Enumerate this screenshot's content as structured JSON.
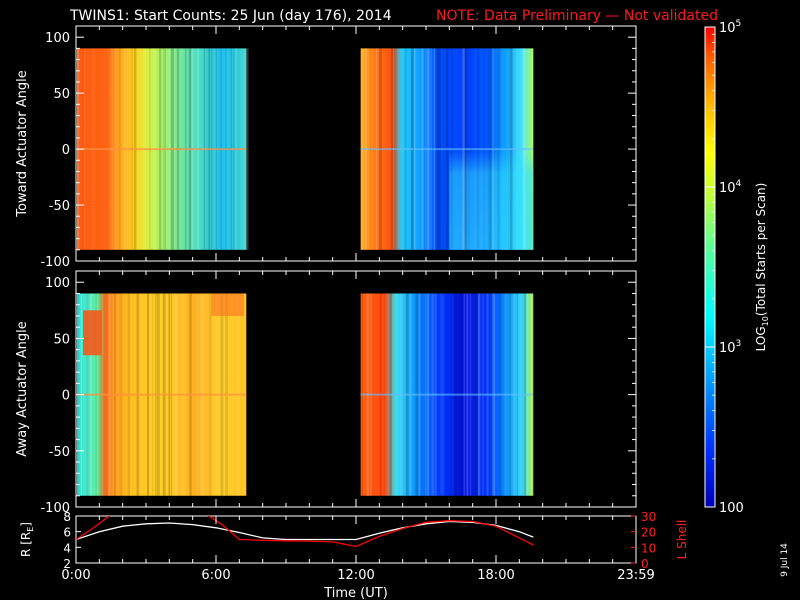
{
  "title": {
    "main": "TWINS1: Start Counts: 25 Jun (day 176), 2014",
    "note": "NOTE: Data Preliminary — Not validated",
    "note_color": "#ff1a1a"
  },
  "footer": {
    "date_stamp": "9 Jul 14"
  },
  "chart_data": [
    {
      "type": "heatmap",
      "ylabel": "Toward Actuator Angle",
      "ylim": [
        -100,
        110
      ],
      "yticks": [
        "-100",
        "-50",
        "0",
        "50",
        "100"
      ],
      "data_extent_y": [
        -90,
        90
      ],
      "xlim": [
        0,
        24
      ],
      "data_segments_hours": [
        [
          0.0,
          7.3
        ],
        [
          12.2,
          19.6
        ]
      ]
    },
    {
      "type": "heatmap",
      "ylabel": "Away Actuator Angle",
      "ylim": [
        -100,
        110
      ],
      "yticks": [
        "-100",
        "-50",
        "0",
        "50",
        "100"
      ],
      "data_extent_y": [
        -90,
        90
      ],
      "xlim": [
        0,
        24
      ],
      "data_segments_hours": [
        [
          0.0,
          7.3
        ],
        [
          12.2,
          19.6
        ]
      ]
    },
    {
      "type": "line",
      "ylabel_left": "R [R",
      "ylabel_left_sub": "E",
      "ylabel_left_end": "]",
      "ylabel_right": "L Shell",
      "ylim_left": [
        2,
        8
      ],
      "yticks_left": [
        "2",
        "4",
        "6",
        "8"
      ],
      "ylim_right": [
        0,
        30
      ],
      "yticks_right": [
        "0",
        "10",
        "20",
        "30"
      ],
      "xlabel": "Time (UT)",
      "xlim": [
        0,
        24
      ],
      "xticks": [
        {
          "value": 0,
          "label": "0:00"
        },
        {
          "value": 6,
          "label": "6:00"
        },
        {
          "value": 12,
          "label": "12:00"
        },
        {
          "value": 18,
          "label": "18:00"
        },
        {
          "value": 24,
          "label": "23:59"
        }
      ],
      "series": [
        {
          "axis": "left",
          "color": "#ffffff",
          "x": [
            0,
            1,
            2,
            3,
            4,
            5,
            6,
            7,
            8,
            9,
            10,
            11,
            12,
            13,
            14,
            15,
            16,
            17,
            18,
            19,
            19.6
          ],
          "y": [
            5.0,
            6.0,
            6.7,
            7.0,
            7.1,
            6.9,
            6.5,
            5.9,
            5.2,
            5.0,
            5.0,
            5.0,
            5.0,
            5.8,
            6.5,
            7.0,
            7.3,
            7.2,
            6.8,
            6.0,
            5.3
          ]
        },
        {
          "axis": "right",
          "color": "#ff0000",
          "x": [
            0,
            0.8,
            1.5,
            2.0,
            5.6,
            6.3,
            7.0,
            8.0,
            9.0,
            10.0,
            11.0,
            12.0,
            13.0,
            14.0,
            15.0,
            16.0,
            17.0,
            18.0,
            19.0,
            19.6
          ],
          "y": [
            15,
            23,
            31,
            31,
            31,
            24,
            15,
            14.5,
            14.2,
            14.0,
            13.5,
            10.5,
            17.0,
            22.0,
            26.0,
            27.0,
            26.5,
            23.5,
            16.0,
            11.5
          ]
        }
      ]
    }
  ],
  "colorbar": {
    "label_pre": "LOG",
    "label_sub": "10",
    "label_post": "(Total Starts per Scan)",
    "ticks": [
      {
        "value": 100,
        "label": "100"
      },
      {
        "value": 1000,
        "label": "10",
        "sup": "3"
      },
      {
        "value": 10000,
        "label": "10",
        "sup": "4"
      },
      {
        "value": 100000,
        "label": "10",
        "sup": "5"
      }
    ],
    "range": [
      100,
      100000
    ]
  }
}
